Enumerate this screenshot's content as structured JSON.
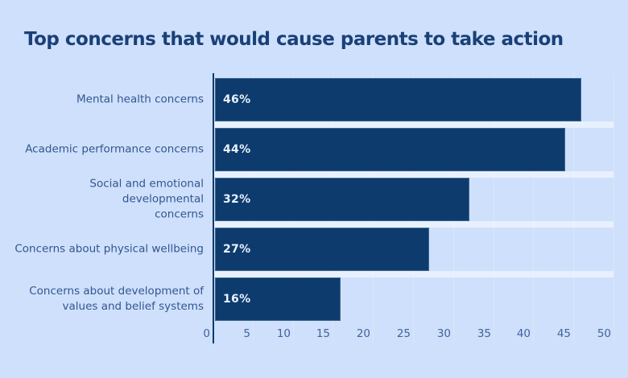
{
  "chart_data": {
    "type": "bar",
    "orientation": "horizontal",
    "title": "Top concerns that would cause parents to take action",
    "categories": [
      "Mental health concerns",
      "Academic performance concerns",
      "Social and emotional developmental\nconcerns",
      "Concerns about physical wellbeing",
      "Concerns about development of\nvalues and belief systems"
    ],
    "values": [
      46,
      44,
      32,
      27,
      16
    ],
    "value_labels": [
      "46%",
      "44%",
      "32%",
      "27%",
      "16%"
    ],
    "xlabel": "",
    "ylabel": "",
    "xlim": [
      0,
      50
    ],
    "xticks": [
      0,
      5,
      10,
      15,
      20,
      25,
      30,
      35,
      40,
      45,
      50
    ],
    "grid": "vertical",
    "legend": "none"
  },
  "colors": {
    "background": "#cee0fb",
    "bar": "#0d3b6e",
    "title": "#1a4078",
    "category_label": "#33568f",
    "tick_label": "#41639c",
    "value_label": "#e9f1fc",
    "gridline": "#d9e6fa",
    "axis_line": "#0d3b6e",
    "row_stripe": "rgba(255,255,255,0.5)"
  }
}
